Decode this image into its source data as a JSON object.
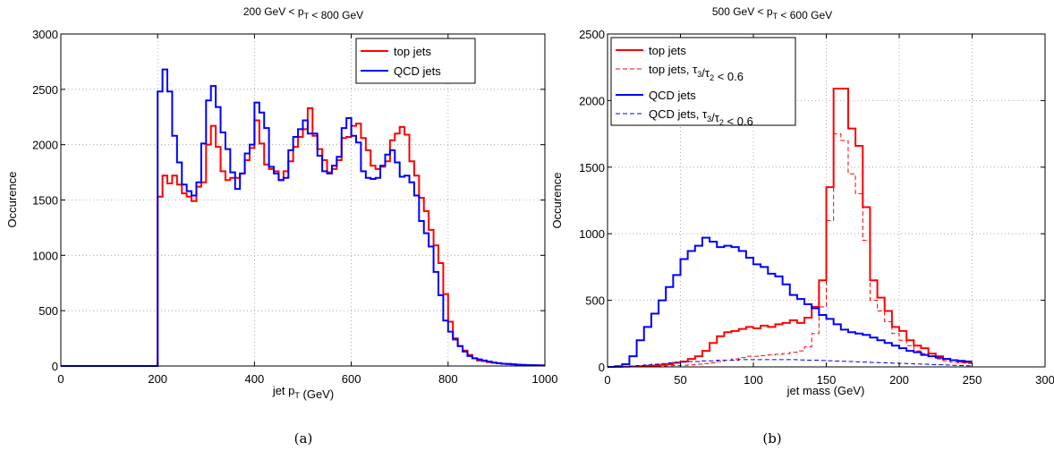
{
  "chart_data": [
    {
      "type": "line",
      "title": "200 GeV < p_T < 800 GeV",
      "xlabel": "jet p_T (GeV)",
      "ylabel": "Occurence",
      "xlim": [
        0,
        1000
      ],
      "ylim": [
        0,
        3000
      ],
      "xticks": [
        "0",
        "200",
        "400",
        "600",
        "800",
        "1000"
      ],
      "yticks": [
        "0",
        "500",
        "1000",
        "1500",
        "2000",
        "2500",
        "3000"
      ],
      "grid": true,
      "legend": "top-right",
      "caption": "(a)",
      "bin_edges_start": 0,
      "bin_width": 10,
      "series": [
        {
          "name": "top jets",
          "color": "#ff0000",
          "style": "solid",
          "values": [
            0,
            0,
            0,
            0,
            0,
            0,
            0,
            0,
            0,
            0,
            0,
            0,
            0,
            0,
            0,
            0,
            0,
            0,
            0,
            0,
            1530,
            1720,
            1650,
            1720,
            1640,
            1560,
            1530,
            1490,
            1620,
            1660,
            2000,
            2170,
            1980,
            1760,
            1680,
            1700,
            1700,
            1740,
            1860,
            1970,
            2220,
            2010,
            1820,
            1780,
            1760,
            1680,
            1760,
            1850,
            1980,
            2070,
            2140,
            2330,
            2080,
            1960,
            1860,
            1750,
            1780,
            1860,
            2060,
            2070,
            2170,
            2190,
            2060,
            1950,
            1810,
            1780,
            1800,
            1850,
            2040,
            2100,
            2160,
            2090,
            1850,
            1720,
            1520,
            1400,
            1230,
            1090,
            930,
            650,
            400,
            250,
            180,
            140,
            100,
            70,
            50,
            45,
            35,
            30,
            25,
            20,
            18,
            15,
            12,
            10,
            8,
            7,
            6,
            5
          ]
        },
        {
          "name": "QCD jets",
          "color": "#0000ff",
          "style": "solid",
          "values": [
            0,
            0,
            0,
            0,
            0,
            0,
            0,
            0,
            0,
            0,
            0,
            0,
            0,
            0,
            0,
            0,
            0,
            0,
            0,
            0,
            2480,
            2680,
            2480,
            2080,
            1840,
            1640,
            1580,
            1540,
            1660,
            2010,
            2400,
            2530,
            2340,
            2110,
            1960,
            1750,
            1600,
            1740,
            1920,
            2000,
            2380,
            2290,
            2150,
            1800,
            1740,
            1680,
            1700,
            1950,
            2070,
            2140,
            2220,
            2100,
            2100,
            1900,
            1760,
            1740,
            1810,
            1890,
            2150,
            2240,
            2080,
            2020,
            1760,
            1700,
            1690,
            1700,
            1810,
            1910,
            1950,
            1840,
            1710,
            1720,
            1660,
            1540,
            1310,
            1200,
            1080,
            850,
            640,
            410,
            310,
            240,
            180,
            130,
            90,
            70,
            60,
            50,
            40,
            30,
            25,
            20,
            18,
            15,
            12,
            10,
            8,
            7,
            6,
            5
          ]
        }
      ]
    },
    {
      "type": "line",
      "title": "500 GeV < p_T < 600 GeV",
      "xlabel": "jet mass (GeV)",
      "ylabel": "Occurence",
      "xlim": [
        0,
        300
      ],
      "ylim": [
        0,
        2500
      ],
      "xticks": [
        "0",
        "50",
        "100",
        "150",
        "200",
        "250",
        "300"
      ],
      "yticks": [
        "0",
        "500",
        "1000",
        "1500",
        "2000",
        "2500"
      ],
      "grid": true,
      "legend": "top-left",
      "caption": "(b)",
      "bin_edges_start": 0,
      "bin_width": 5,
      "series": [
        {
          "name": "top jets",
          "color": "#ff0000",
          "style": "solid",
          "values": [
            0,
            0,
            2,
            3,
            5,
            8,
            10,
            15,
            20,
            30,
            40,
            60,
            80,
            120,
            180,
            230,
            260,
            270,
            285,
            300,
            290,
            310,
            300,
            320,
            330,
            350,
            330,
            370,
            450,
            650,
            1350,
            2090,
            2090,
            1790,
            1660,
            1200,
            650,
            520,
            420,
            300,
            270,
            200,
            160,
            140,
            100,
            80,
            60,
            50,
            40,
            35
          ]
        },
        {
          "name": "top jets, τ3/τ2 < 0.6",
          "color": "#ff0000",
          "style": "dashed",
          "values": [
            0,
            0,
            1,
            2,
            3,
            4,
            5,
            6,
            8,
            10,
            12,
            15,
            20,
            25,
            30,
            40,
            50,
            60,
            70,
            80,
            80,
            85,
            90,
            95,
            100,
            110,
            120,
            150,
            250,
            450,
            1100,
            1750,
            1700,
            1450,
            1300,
            950,
            500,
            420,
            340,
            250,
            200,
            160,
            120,
            100,
            80,
            60,
            45,
            35,
            30,
            25
          ]
        },
        {
          "name": "QCD jets",
          "color": "#0000ff",
          "style": "solid",
          "values": [
            0,
            5,
            20,
            80,
            200,
            300,
            400,
            500,
            600,
            690,
            810,
            870,
            910,
            970,
            940,
            900,
            910,
            900,
            870,
            820,
            770,
            750,
            700,
            680,
            620,
            540,
            510,
            470,
            440,
            390,
            360,
            320,
            280,
            260,
            250,
            240,
            220,
            200,
            180,
            160,
            140,
            120,
            110,
            90,
            80,
            70,
            60,
            50,
            45,
            40
          ]
        },
        {
          "name": "QCD jets, τ3/τ2 < 0.6",
          "color": "#0000ff",
          "style": "dashed",
          "values": [
            0,
            1,
            3,
            6,
            10,
            15,
            20,
            25,
            30,
            35,
            35,
            40,
            40,
            45,
            45,
            50,
            50,
            50,
            55,
            55,
            55,
            55,
            55,
            55,
            55,
            55,
            52,
            50,
            50,
            48,
            46,
            44,
            42,
            40,
            38,
            36,
            34,
            32,
            30,
            28,
            26,
            24,
            22,
            20,
            18,
            16,
            14,
            12,
            10,
            8
          ]
        }
      ]
    }
  ]
}
